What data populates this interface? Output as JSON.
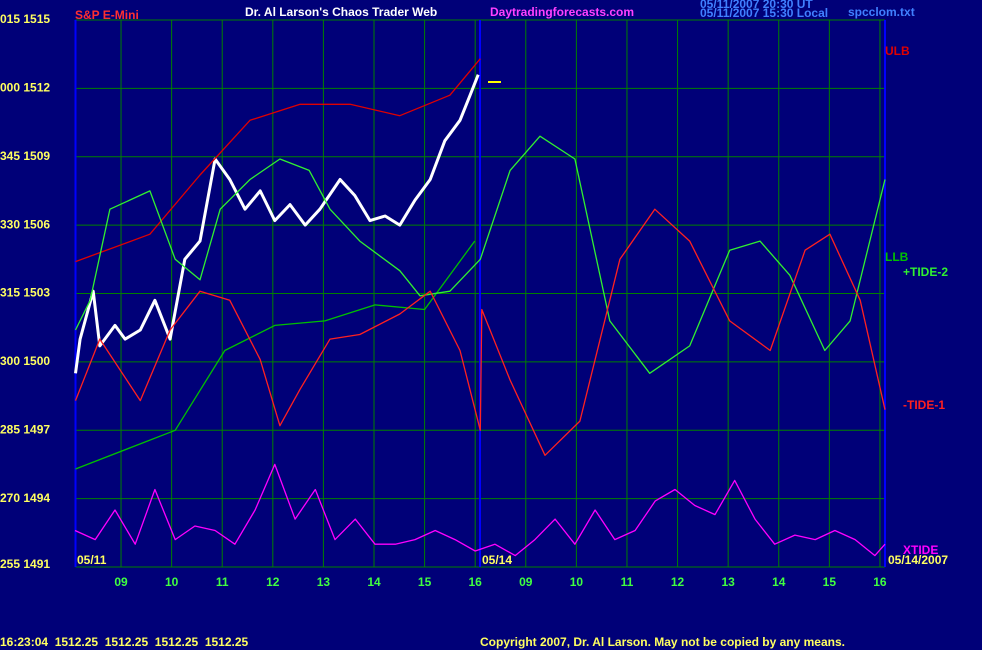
{
  "chart_data": {
    "type": "line",
    "title": "Dr. Al Larson's Chaos Trader Web",
    "subtitle": "Daytradingforecasts.com",
    "annotations": [
      "05/11/2007 20:30 UT",
      "05/11/2007 15:30 Local",
      "spcclom.txt",
      "05/11",
      "05/14",
      "05/14/2007",
      "16:23:04  1512.25  1512.25  1512.25  1512.25",
      "Copyright 2007, Dr. Al Larson. May not be copied by any means."
    ],
    "xlim": [
      0.1,
      16.1
    ],
    "xticks": [
      {
        "value": 1,
        "label": "09"
      },
      {
        "value": 2,
        "label": "10"
      },
      {
        "value": 3,
        "label": "11"
      },
      {
        "value": 4,
        "label": "12"
      },
      {
        "value": 5,
        "label": "13"
      },
      {
        "value": 6,
        "label": "14"
      },
      {
        "value": 7,
        "label": "15"
      },
      {
        "value": 8,
        "label": "16"
      },
      {
        "value": 9,
        "label": "09"
      },
      {
        "value": 10,
        "label": "10"
      },
      {
        "value": 11,
        "label": "11"
      },
      {
        "value": 12,
        "label": "12"
      },
      {
        "value": 13,
        "label": "13"
      },
      {
        "value": 14,
        "label": "14"
      },
      {
        "value": 15,
        "label": "15"
      },
      {
        "value": 16,
        "label": "16"
      }
    ],
    "ylim": [
      1491,
      1515
    ],
    "yticks": [
      {
        "value": 1491,
        "label": "255 1491"
      },
      {
        "value": 1494,
        "label": "270 1494"
      },
      {
        "value": 1497,
        "label": "285 1497"
      },
      {
        "value": 1500,
        "label": "300 1500"
      },
      {
        "value": 1503,
        "label": "315 1503"
      },
      {
        "value": 1506,
        "label": "330 1506"
      },
      {
        "value": 1509,
        "label": "345 1509"
      },
      {
        "value": 1512,
        "label": "000 1512"
      },
      {
        "value": 1515,
        "label": "015 1515"
      }
    ],
    "grid": true,
    "series": [
      {
        "name": "S&P E-Mini",
        "color": "#ffffff",
        "x": [
          0.1,
          0.19,
          0.45,
          0.58,
          0.88,
          1.08,
          1.38,
          1.67,
          1.97,
          2.26,
          2.56,
          2.86,
          3.15,
          3.45,
          3.75,
          4.04,
          4.34,
          4.64,
          4.93,
          5.33,
          5.62,
          5.92,
          6.22,
          6.51,
          6.81,
          7.11,
          7.4,
          7.7,
          7.9,
          8.06
        ],
        "values": [
          1499.5,
          1501.0,
          1503.1,
          1500.7,
          1501.6,
          1501.0,
          1501.4,
          1502.7,
          1501.0,
          1504.5,
          1505.3,
          1508.9,
          1508.0,
          1506.7,
          1507.5,
          1506.2,
          1506.9,
          1506.0,
          1506.7,
          1508.0,
          1507.3,
          1506.2,
          1506.4,
          1506.0,
          1507.1,
          1508.0,
          1509.7,
          1510.6,
          1511.7,
          1512.6
        ]
      },
      {
        "name": "ULB",
        "color": "#e00000",
        "x": [
          0.1,
          1.57,
          2.56,
          3.55,
          4.54,
          5.53,
          6.51,
          7.5,
          8.1
        ],
        "values": [
          1504.4,
          1505.6,
          1508.2,
          1510.6,
          1511.3,
          1511.3,
          1510.8,
          1511.7,
          1513.3
        ]
      },
      {
        "name": "LLB",
        "color": "#00c000",
        "x": [
          0.1,
          2.07,
          3.05,
          4.04,
          5.03,
          6.02,
          7.0,
          7.99
        ],
        "values": [
          1495.3,
          1497.0,
          1500.5,
          1501.6,
          1501.8,
          1502.5,
          1502.3,
          1505.3
        ]
      },
      {
        "name": "+TIDE-2",
        "color": "#30f030",
        "x": [
          0.1,
          0.39,
          0.78,
          1.57,
          2.07,
          2.56,
          2.96,
          3.55,
          4.14,
          4.72,
          5.13,
          5.72,
          6.51,
          6.91,
          7.5,
          8.1,
          8.69,
          9.28,
          9.97,
          10.66,
          11.45,
          12.24,
          13.03,
          13.63,
          14.22,
          14.91,
          15.41,
          16.1
        ],
        "values": [
          1501.4,
          1502.7,
          1506.7,
          1507.5,
          1504.5,
          1503.6,
          1506.7,
          1508.0,
          1508.9,
          1508.4,
          1506.7,
          1505.3,
          1504.0,
          1502.9,
          1503.1,
          1504.5,
          1508.4,
          1509.9,
          1508.9,
          1501.8,
          1499.5,
          1500.7,
          1504.9,
          1505.3,
          1503.8,
          1500.5,
          1501.8,
          1508.0
        ]
      },
      {
        "name": "-TIDE-1",
        "color": "#ff2020",
        "x": [
          0.1,
          0.58,
          1.38,
          1.97,
          2.56,
          3.15,
          3.75,
          4.14,
          4.54,
          5.13,
          5.72,
          6.51,
          7.11,
          7.7,
          8.1,
          8.13,
          8.69,
          9.38,
          10.07,
          10.86,
          11.55,
          12.24,
          13.03,
          13.83,
          14.52,
          15.01,
          15.61,
          16.1
        ],
        "values": [
          1498.3,
          1501.0,
          1498.3,
          1501.4,
          1503.1,
          1502.7,
          1500.1,
          1497.2,
          1498.8,
          1501.0,
          1501.2,
          1502.1,
          1503.1,
          1500.5,
          1497.0,
          1502.3,
          1499.2,
          1495.9,
          1497.4,
          1504.5,
          1506.7,
          1505.3,
          1501.8,
          1500.5,
          1504.9,
          1505.6,
          1502.7,
          1497.9
        ]
      },
      {
        "name": "XTIDE",
        "color": "#ff00ff",
        "x": [
          0.09,
          0.49,
          0.88,
          1.28,
          1.67,
          2.07,
          2.46,
          2.86,
          3.25,
          3.65,
          4.04,
          4.44,
          4.84,
          5.23,
          5.63,
          6.02,
          6.42,
          6.81,
          7.21,
          7.6,
          8.0,
          8.39,
          8.79,
          9.18,
          9.58,
          9.97,
          10.37,
          10.76,
          11.16,
          11.56,
          11.95,
          12.34,
          12.74,
          13.13,
          13.53,
          13.92,
          14.32,
          14.72,
          15.11,
          15.51,
          15.9,
          16.1
        ],
        "values": [
          1492.6,
          1492.2,
          1493.5,
          1492.0,
          1494.4,
          1492.2,
          1492.8,
          1492.6,
          1492.0,
          1493.5,
          1495.5,
          1493.1,
          1494.4,
          1492.2,
          1493.1,
          1492.0,
          1492.0,
          1492.2,
          1492.6,
          1492.2,
          1491.7,
          1492.0,
          1491.5,
          1492.2,
          1493.1,
          1492.0,
          1493.5,
          1492.2,
          1492.6,
          1493.9,
          1494.4,
          1493.7,
          1493.3,
          1494.8,
          1493.1,
          1492.0,
          1492.4,
          1492.2,
          1492.6,
          1492.2,
          1491.5,
          1492.0
        ]
      }
    ]
  }
}
